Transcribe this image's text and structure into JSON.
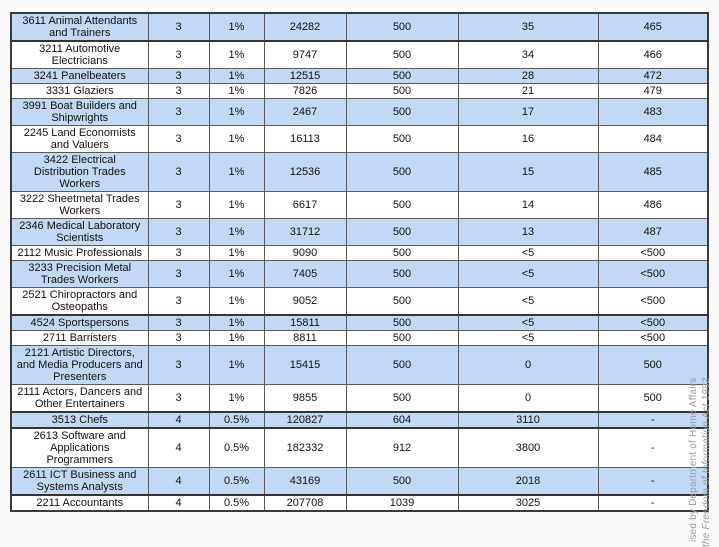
{
  "page": {
    "background_color": "#fafafa",
    "row_shade_color": "#c2d8f5"
  },
  "table": {
    "rows": [
      {
        "cells": [
          "3611 Animal Attendants\nand Trainers",
          "3",
          "1%",
          "24282",
          "500",
          "35",
          "465"
        ],
        "shaded": true,
        "thick_bottom": true
      },
      {
        "cells": [
          "3211 Automotive\nElectricians",
          "3",
          "1%",
          "9747",
          "500",
          "34",
          "466"
        ],
        "shaded": false
      },
      {
        "cells": [
          "3241 Panelbeaters",
          "3",
          "1%",
          "12515",
          "500",
          "28",
          "472"
        ],
        "shaded": true
      },
      {
        "cells": [
          "3331 Glaziers",
          "3",
          "1%",
          "7826",
          "500",
          "21",
          "479"
        ],
        "shaded": false
      },
      {
        "cells": [
          "3991 Boat Builders and\nShipwrights",
          "3",
          "1%",
          "2467",
          "500",
          "17",
          "483"
        ],
        "shaded": true
      },
      {
        "cells": [
          "2245 Land Economists\nand Valuers",
          "3",
          "1%",
          "16113",
          "500",
          "16",
          "484"
        ],
        "shaded": false
      },
      {
        "cells": [
          "3422 Electrical\nDistribution Trades\nWorkers",
          "3",
          "1%",
          "12536",
          "500",
          "15",
          "485"
        ],
        "shaded": true
      },
      {
        "cells": [
          "3222 Sheetmetal Trades\nWorkers",
          "3",
          "1%",
          "6617",
          "500",
          "14",
          "486"
        ],
        "shaded": false
      },
      {
        "cells": [
          "2346 Medical Laboratory\nScientists",
          "3",
          "1%",
          "31712",
          "500",
          "13",
          "487"
        ],
        "shaded": true
      },
      {
        "cells": [
          "2112 Music Professionals",
          "3",
          "1%",
          "9090",
          "500",
          "<5",
          "<500"
        ],
        "shaded": false
      },
      {
        "cells": [
          "3233 Precision Metal\nTrades Workers",
          "3",
          "1%",
          "7405",
          "500",
          "<5",
          "<500"
        ],
        "shaded": true
      },
      {
        "cells": [
          "2521 Chiropractors and\nOsteopaths",
          "3",
          "1%",
          "9052",
          "500",
          "<5",
          "<500"
        ],
        "shaded": false
      },
      {
        "cells": [
          "4524 Sportspersons",
          "3",
          "1%",
          "15811",
          "500",
          "<5",
          "<500"
        ],
        "shaded": true,
        "thick_top": true
      },
      {
        "cells": [
          "2711 Barristers",
          "3",
          "1%",
          "8811",
          "500",
          "<5",
          "<500"
        ],
        "shaded": false
      },
      {
        "cells": [
          "2121 Artistic Directors,\nand Media Producers and\nPresenters",
          "3",
          "1%",
          "15415",
          "500",
          "0",
          "500"
        ],
        "shaded": true
      },
      {
        "cells": [
          "2111 Actors, Dancers and\nOther Entertainers",
          "3",
          "1%",
          "9855",
          "500",
          "0",
          "500"
        ],
        "shaded": false
      },
      {
        "cells": [
          "3513 Chefs",
          "4",
          "0.5%",
          "120827",
          "604",
          "3110",
          "-"
        ],
        "shaded": true,
        "thick_top": true,
        "thick_bottom": true
      },
      {
        "cells": [
          "2613 Software and\nApplications\nProgrammers",
          "4",
          "0.5%",
          "182332",
          "912",
          "3800",
          "-"
        ],
        "shaded": false
      },
      {
        "cells": [
          "2611 ICT Business and\nSystems Analysts",
          "4",
          "0.5%",
          "43169",
          "500",
          "2018",
          "-"
        ],
        "shaded": true,
        "thick_bottom": true
      },
      {
        "cells": [
          "2211 Accountants",
          "4",
          "0.5%",
          "207708",
          "1039",
          "3025",
          "-"
        ],
        "shaded": false
      }
    ]
  },
  "watermark": {
    "line1": "ised by Department of Home Affairs",
    "line2": "the Freedom of Information Act 1982",
    "color": "#9c9c9c"
  }
}
